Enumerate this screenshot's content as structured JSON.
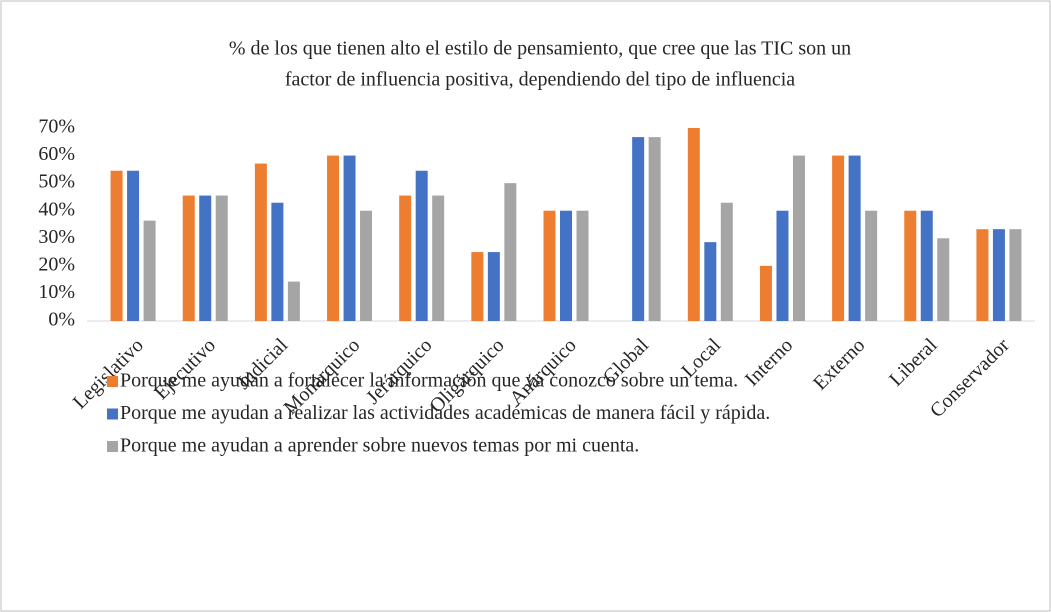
{
  "chart_data": {
    "type": "bar",
    "title": [
      "% de los que tienen alto el estilo de pensamiento, que cree que las TIC son un",
      "factor de influencia positiva, dependiendo del tipo de influencia"
    ],
    "categories": [
      "Legislativo",
      "Ejecutivo",
      "Judicial",
      "Monárquico",
      "Jerárquico",
      "Oligárquico",
      "Anárquico",
      "Global",
      "Local",
      "Interno",
      "Externo",
      "Liberal",
      "Conservador"
    ],
    "series": [
      {
        "name": "Porque me ayudan a fortalecer la información que ya conozco sobre un tema.",
        "color": "#ed7d31",
        "values": [
          54.5,
          45.5,
          57.1,
          60,
          45.5,
          25,
          40,
          0,
          70,
          20,
          60,
          40,
          33.3
        ]
      },
      {
        "name": "Porque me ayudan a realizar las actividades académicas de manera fácil y rápida.",
        "color": "#4472c4",
        "values": [
          54.5,
          45.5,
          42.9,
          60,
          54.5,
          25,
          40,
          66.7,
          28.6,
          40,
          60,
          40,
          33.3
        ]
      },
      {
        "name": "Porque me ayudan a aprender sobre nuevos temas por mi cuenta.",
        "color": "#a5a5a5",
        "values": [
          36.4,
          45.5,
          14.3,
          40,
          45.5,
          50,
          40,
          66.7,
          42.9,
          60,
          40,
          30,
          33.3
        ]
      }
    ],
    "ylim": [
      0,
      70
    ],
    "yticks": [
      {
        "value": 0,
        "label": "0%"
      },
      {
        "value": 10,
        "label": "10%"
      },
      {
        "value": 20,
        "label": "20%"
      },
      {
        "value": 30,
        "label": "30%"
      },
      {
        "value": 40,
        "label": "40%"
      },
      {
        "value": 50,
        "label": "50%"
      },
      {
        "value": 60,
        "label": "60%"
      },
      {
        "value": 70,
        "label": "70%"
      }
    ],
    "grid": false,
    "legend": "bottom"
  }
}
